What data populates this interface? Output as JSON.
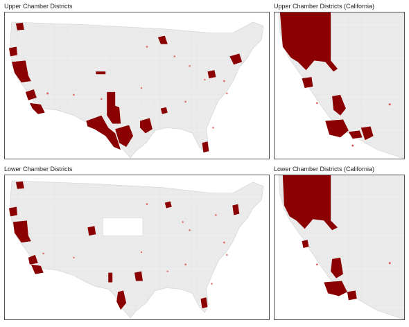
{
  "panels": {
    "upper_us": {
      "title": "Upper Chamber Districts"
    },
    "upper_ca": {
      "title": "Upper Chamber Districts (California)"
    },
    "lower_us": {
      "title": "Lower Chamber Districts"
    },
    "lower_ca": {
      "title": "Lower Chamber Districts (California)"
    }
  },
  "colors": {
    "highlight": "#8b0000",
    "land": "#ebebeb",
    "district_lines": "#d6d6d6",
    "background": "#ffffff"
  }
}
